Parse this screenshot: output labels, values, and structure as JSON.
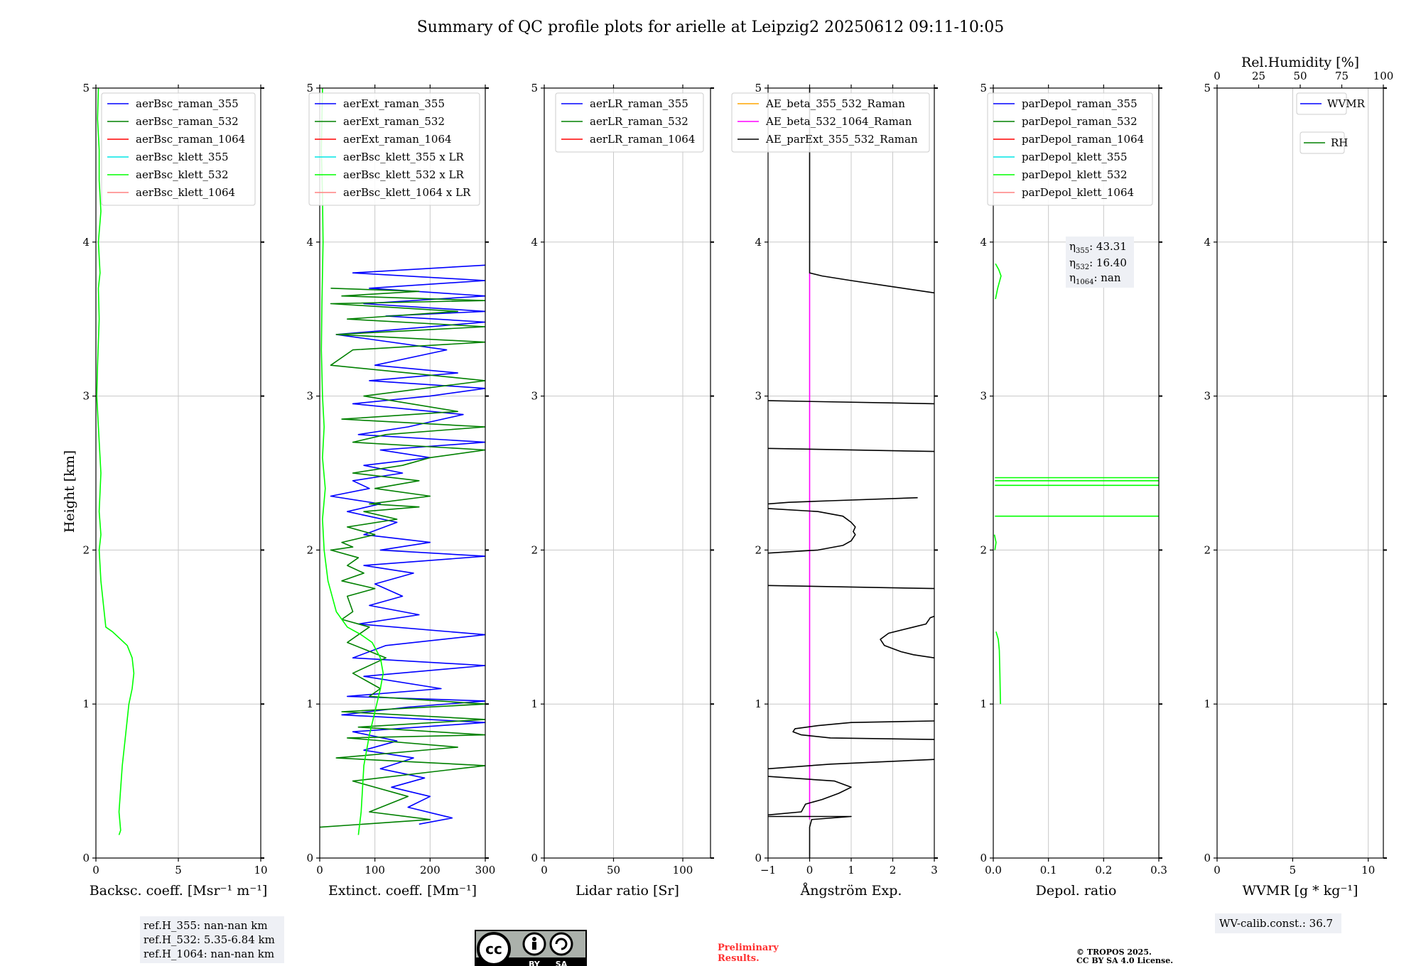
{
  "title": "Summary of QC profile plots for arielle at Leipzig2 20250612 09:11-10:05",
  "ylabel": "Height [km]",
  "panels": [
    {
      "id": "bsc",
      "xlabel": "Backsc. coeff. [Msr⁻¹ m⁻¹]",
      "xticks": [
        "0",
        "5",
        "10"
      ],
      "legend": [
        "aerBsc_raman_355",
        "aerBsc_raman_532",
        "aerBsc_raman_1064",
        "aerBsc_klett_355",
        "aerBsc_klett_532",
        "aerBsc_klett_1064"
      ]
    },
    {
      "id": "ext",
      "xlabel": "Extinct. coeff. [Mm⁻¹]",
      "xticks": [
        "0",
        "100",
        "200",
        "300"
      ],
      "legend": [
        "aerExt_raman_355",
        "aerExt_raman_532",
        "aerExt_raman_1064",
        "aerBsc_klett_355 x LR",
        "aerBsc_klett_532 x LR",
        "aerBsc_klett_1064 x LR"
      ]
    },
    {
      "id": "lr",
      "xlabel": "Lidar ratio [Sr]",
      "xticks": [
        "0",
        "50",
        "100"
      ],
      "legend": [
        "aerLR_raman_355",
        "aerLR_raman_532",
        "aerLR_raman_1064"
      ]
    },
    {
      "id": "ae",
      "xlabel": "Ångström Exp.",
      "xticks": [
        "−1",
        "0",
        "1",
        "2",
        "3"
      ],
      "legend": [
        "AE_beta_355_532_Raman",
        "AE_beta_532_1064_Raman",
        "AE_parExt_355_532_Raman"
      ]
    },
    {
      "id": "dep",
      "xlabel": "Depol. ratio",
      "xticks": [
        "0.0",
        "0.1",
        "0.2",
        "0.3"
      ],
      "legend": [
        "parDepol_raman_355",
        "parDepol_raman_532",
        "parDepol_raman_1064",
        "parDepol_klett_355",
        "parDepol_klett_532",
        "parDepol_klett_1064"
      ]
    },
    {
      "id": "wv",
      "xlabel": "WVMR [g * kg⁻¹]",
      "xticks": [
        "0",
        "5",
        "10"
      ],
      "top_label": "Rel.Humidity [%]",
      "top_ticks": [
        "0",
        "25",
        "50",
        "75",
        "100"
      ],
      "legend": [
        "WVMR",
        "RH"
      ]
    }
  ],
  "yticks": [
    "0",
    "1",
    "2",
    "3",
    "4",
    "5"
  ],
  "eta": {
    "eta355": {
      "sym": "η",
      "sub": "355",
      "val": ": 43.31"
    },
    "eta532": {
      "sym": "η",
      "sub": "532",
      "val": ": 16.40"
    },
    "eta1064": {
      "sym": "η",
      "sub": "1064",
      "val": ": nan"
    }
  },
  "refh": [
    "ref.H_355: nan-nan km",
    "ref.H_532: 5.35-6.84 km",
    "ref.H_1064: nan-nan km"
  ],
  "wvcalib": "WV-calib.const.: 36.7",
  "prelim": [
    "Preliminary",
    "Results."
  ],
  "copyright": [
    "© TROPOS 2025.",
    "CC BY SA 4.0 License."
  ],
  "cc_badge": {
    "cc": "cc",
    "by": "BY",
    "sa": "SA"
  },
  "colors": {
    "blue": "#0000ff",
    "green": "#008000",
    "red": "#ff0000",
    "cyan": "#00e5e5",
    "lime": "#00ff00",
    "pink": "#ff8080",
    "orange": "#ffa500",
    "magenta": "#ff00ff",
    "black": "#000000",
    "prelim": "#ff3030"
  },
  "chart_data": [
    {
      "type": "line",
      "panel": "bsc",
      "xlim": [
        0,
        10
      ],
      "ylim": [
        0,
        5
      ],
      "series": [
        {
          "name": "aerBsc_klett_532",
          "color": "lime",
          "x": [
            1.4,
            1.5,
            1.4,
            1.6,
            1.8,
            2.0,
            2.2,
            2.3,
            2.2,
            1.9,
            1.5,
            1.0,
            0.6,
            0.3,
            0.2,
            0.3,
            0.2,
            0.3,
            0.15,
            0.05,
            0.1,
            0.2,
            0.15,
            0.25,
            0.15,
            0.3,
            0.2,
            0.2,
            0.1,
            0.15
          ],
          "y": [
            0.15,
            0.18,
            0.3,
            0.6,
            0.8,
            1.0,
            1.1,
            1.2,
            1.3,
            1.38,
            1.42,
            1.47,
            1.5,
            1.8,
            2.0,
            2.1,
            2.25,
            2.5,
            2.8,
            3.0,
            3.2,
            3.5,
            3.7,
            3.8,
            4.0,
            4.2,
            4.4,
            4.6,
            4.8,
            5.0
          ]
        }
      ]
    },
    {
      "type": "line",
      "panel": "ext",
      "xlim": [
        0,
        300
      ],
      "ylim": [
        0,
        5
      ],
      "series": [
        {
          "name": "aerExt_raman_355",
          "color": "blue",
          "x": [
            180,
            240,
            160,
            200,
            130,
            190,
            110,
            170,
            80,
            140,
            60,
            300,
            40,
            160,
            300,
            50,
            220,
            80,
            300,
            60,
            120,
            300,
            70,
            180,
            90,
            150,
            100,
            170,
            80,
            300,
            110,
            200,
            80,
            140,
            50,
            110,
            20,
            90,
            60,
            150,
            80,
            200,
            110,
            300,
            70,
            160,
            260,
            60,
            200,
            300,
            90,
            250,
            100,
            230,
            30,
            300,
            120,
            300,
            80,
            300,
            90,
            300,
            60,
            300
          ],
          "y": [
            0.22,
            0.26,
            0.33,
            0.4,
            0.46,
            0.52,
            0.58,
            0.65,
            0.7,
            0.76,
            0.82,
            0.88,
            0.93,
            0.98,
            1.02,
            1.05,
            1.1,
            1.18,
            1.25,
            1.3,
            1.38,
            1.45,
            1.52,
            1.58,
            1.64,
            1.7,
            1.78,
            1.85,
            1.9,
            1.96,
            2.0,
            2.05,
            2.1,
            2.18,
            2.25,
            2.3,
            2.35,
            2.4,
            2.45,
            2.5,
            2.55,
            2.6,
            2.65,
            2.7,
            2.75,
            2.8,
            2.88,
            2.95,
            3.0,
            3.05,
            3.1,
            3.15,
            3.2,
            3.3,
            3.4,
            3.48,
            3.52,
            3.55,
            3.6,
            3.65,
            3.7,
            3.75,
            3.8,
            3.85
          ]
        },
        {
          "name": "aerExt_raman_532",
          "color": "green",
          "x": [
            0,
            200,
            90,
            160,
            60,
            300,
            30,
            250,
            50,
            300,
            70,
            300,
            40,
            300,
            90,
            110,
            60,
            120,
            50,
            90,
            40,
            60,
            50,
            100,
            40,
            80,
            50,
            70,
            20,
            60,
            40,
            100,
            50,
            140,
            80,
            180,
            90,
            200,
            100,
            180,
            60,
            150,
            200,
            300,
            60,
            120,
            300,
            40,
            250,
            80,
            300,
            20,
            60,
            300,
            30,
            300,
            50,
            250,
            20,
            300,
            40,
            180,
            20
          ],
          "y": [
            0.2,
            0.25,
            0.3,
            0.4,
            0.5,
            0.6,
            0.65,
            0.72,
            0.78,
            0.8,
            0.85,
            0.9,
            0.95,
            1.0,
            1.05,
            1.1,
            1.2,
            1.3,
            1.4,
            1.5,
            1.55,
            1.6,
            1.7,
            1.75,
            1.8,
            1.85,
            1.9,
            1.95,
            2.0,
            2.02,
            2.05,
            2.1,
            2.15,
            2.2,
            2.25,
            2.28,
            2.3,
            2.35,
            2.4,
            2.45,
            2.5,
            2.55,
            2.6,
            2.65,
            2.7,
            2.75,
            2.8,
            2.85,
            2.9,
            3.0,
            3.1,
            3.2,
            3.3,
            3.35,
            3.4,
            3.45,
            3.5,
            3.55,
            3.6,
            3.62,
            3.65,
            3.68,
            3.7
          ]
        },
        {
          "name": "aerBsc_klett_532 x LR",
          "color": "lime",
          "x": [
            70,
            75,
            80,
            90,
            100,
            110,
            115,
            110,
            95,
            75,
            50,
            30,
            15,
            8,
            5,
            10,
            5,
            8,
            5,
            3,
            4,
            6,
            5,
            3,
            5
          ],
          "y": [
            0.15,
            0.3,
            0.6,
            0.8,
            0.95,
            1.1,
            1.2,
            1.3,
            1.4,
            1.45,
            1.5,
            1.6,
            1.8,
            2.0,
            2.2,
            2.4,
            2.6,
            2.8,
            3.0,
            3.3,
            3.6,
            4.0,
            4.3,
            4.6,
            5.0
          ]
        }
      ]
    },
    {
      "type": "line",
      "panel": "lr",
      "xlim": [
        0,
        120
      ],
      "ylim": [
        0,
        5
      ],
      "series": []
    },
    {
      "type": "line",
      "panel": "ae",
      "xlim": [
        -1,
        3
      ],
      "ylim": [
        0,
        5
      ],
      "series": [
        {
          "name": "AE_beta_532_1064_Raman",
          "color": "magenta",
          "x": [
            0,
            0
          ],
          "y": [
            0.25,
            3.8
          ]
        },
        {
          "name": "AE_parExt_355_532_Raman",
          "color": "black",
          "segments": [
            {
              "x": [
                0,
                0,
                0.05,
                1.0,
                -1.0
              ],
              "y": [
                0.0,
                0.2,
                0.25,
                0.27,
                0.27
              ]
            },
            {
              "x": [
                -1.0,
                -0.2,
                -0.1,
                0.3,
                0.7,
                1.0,
                0.6,
                -1.0
              ],
              "y": [
                0.28,
                0.3,
                0.35,
                0.38,
                0.42,
                0.46,
                0.5,
                0.53
              ]
            },
            {
              "x": [
                -1.0,
                0.5,
                3.0
              ],
              "y": [
                0.58,
                0.61,
                0.64
              ]
            },
            {
              "x": [
                3.0,
                0.5,
                -0.2,
                -0.4,
                -0.35,
                0.2,
                1.0,
                3.0
              ],
              "y": [
                0.77,
                0.78,
                0.8,
                0.82,
                0.84,
                0.86,
                0.88,
                0.89
              ]
            },
            {
              "x": [
                3.0,
                2.5,
                2.2,
                1.8,
                1.7,
                1.9,
                2.5,
                2.8,
                2.9,
                3.0
              ],
              "y": [
                1.3,
                1.32,
                1.34,
                1.38,
                1.42,
                1.46,
                1.5,
                1.52,
                1.56,
                1.57
              ]
            },
            {
              "x": [
                -1.0,
                3.0
              ],
              "y": [
                1.77,
                1.75
              ]
            },
            {
              "x": [
                -1.0,
                0.2,
                0.8,
                1.0,
                1.1,
                1.05,
                1.1,
                1.0,
                0.8,
                0.2,
                -1.0
              ],
              "y": [
                1.98,
                2.0,
                2.03,
                2.06,
                2.1,
                2.12,
                2.15,
                2.18,
                2.22,
                2.25,
                2.27
              ]
            },
            {
              "x": [
                -1.0,
                -0.5,
                0.5,
                2.6
              ],
              "y": [
                2.3,
                2.31,
                2.32,
                2.34
              ]
            },
            {
              "x": [
                -1.0,
                3.0
              ],
              "y": [
                2.66,
                2.64
              ]
            },
            {
              "x": [
                -1.0,
                3.0
              ],
              "y": [
                2.97,
                2.95
              ]
            },
            {
              "x": [
                0,
                0,
                0.3,
                1.0,
                2.0,
                3.0
              ],
              "y": [
                5.0,
                3.8,
                3.78,
                3.75,
                3.71,
                3.67
              ]
            }
          ]
        }
      ]
    },
    {
      "type": "line",
      "panel": "dep",
      "xlim": [
        0,
        0.3
      ],
      "ylim": [
        0,
        5
      ],
      "series": [
        {
          "name": "parDepol_klett_532",
          "color": "lime",
          "segments": [
            {
              "x": [
                0.013,
                0.012,
                0.011,
                0.009,
                0.005
              ],
              "y": [
                1.0,
                1.2,
                1.35,
                1.42,
                1.47
              ]
            },
            {
              "x": [
                0.003,
                0.005,
                0.002
              ],
              "y": [
                2.0,
                2.05,
                2.1
              ]
            },
            {
              "x": [
                0.003,
                0.3
              ],
              "y": [
                2.22,
                2.22
              ]
            },
            {
              "x": [
                0.003,
                0.3
              ],
              "y": [
                2.42,
                2.42
              ]
            },
            {
              "x": [
                0.003,
                0.3
              ],
              "y": [
                2.45,
                2.45
              ]
            },
            {
              "x": [
                0.003,
                0.3
              ],
              "y": [
                2.47,
                2.47
              ]
            },
            {
              "x": [
                0.004,
                0.008,
                0.014,
                0.01,
                0.004
              ],
              "y": [
                3.63,
                3.7,
                3.78,
                3.82,
                3.86
              ]
            }
          ]
        }
      ]
    },
    {
      "type": "line",
      "panel": "wv",
      "xlim": [
        0,
        11
      ],
      "ylim": [
        0,
        5
      ],
      "top_xlim": [
        0,
        100
      ],
      "series": []
    }
  ]
}
